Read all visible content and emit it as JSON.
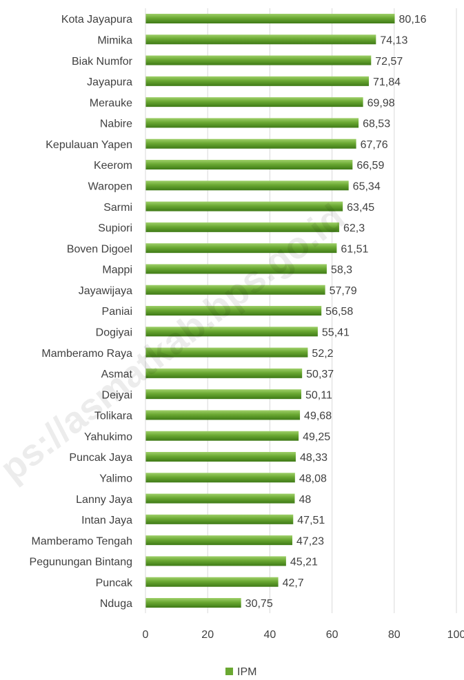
{
  "chart_data": {
    "type": "hbar",
    "watermark": "ps://asmatkab.bps.go.id",
    "categories": [
      "Kota Jayapura",
      "Mimika",
      "Biak Numfor",
      "Jayapura",
      "Merauke",
      "Nabire",
      "Kepulauan Yapen",
      "Keerom",
      "Waropen",
      "Sarmi",
      "Supiori",
      "Boven Digoel",
      "Mappi",
      "Jayawijaya",
      "Paniai",
      "Dogiyai",
      "Mamberamo Raya",
      "Asmat",
      "Deiyai",
      "Tolikara",
      "Yahukimo",
      "Puncak Jaya",
      "Yalimo",
      "Lanny Jaya",
      "Intan Jaya",
      "Mamberamo Tengah",
      "Pegunungan Bintang",
      "Puncak",
      "Nduga"
    ],
    "series": [
      {
        "name": "IPM",
        "color": "#6aa832",
        "values": [
          80.16,
          74.13,
          72.57,
          71.84,
          69.98,
          68.53,
          67.76,
          66.59,
          65.34,
          63.45,
          62.3,
          61.51,
          58.3,
          57.79,
          56.58,
          55.41,
          52.2,
          50.37,
          50.11,
          49.68,
          49.25,
          48.33,
          48.08,
          48,
          47.51,
          47.23,
          45.21,
          42.7,
          30.75
        ],
        "value_labels": [
          "80,16",
          "74,13",
          "72,57",
          "71,84",
          "69,98",
          "68,53",
          "67,76",
          "66,59",
          "65,34",
          "63,45",
          "62,3",
          "61,51",
          "58,3",
          "57,79",
          "56,58",
          "55,41",
          "52,2",
          "50,37",
          "50,11",
          "49,68",
          "49,25",
          "48,33",
          "48,08",
          "48",
          "47,51",
          "47,23",
          "45,21",
          "42,7",
          "30,75"
        ]
      }
    ],
    "xlim": [
      0,
      100
    ],
    "xticks": [
      0,
      20,
      40,
      60,
      80,
      100
    ],
    "grid": true,
    "legend": "bottom"
  }
}
